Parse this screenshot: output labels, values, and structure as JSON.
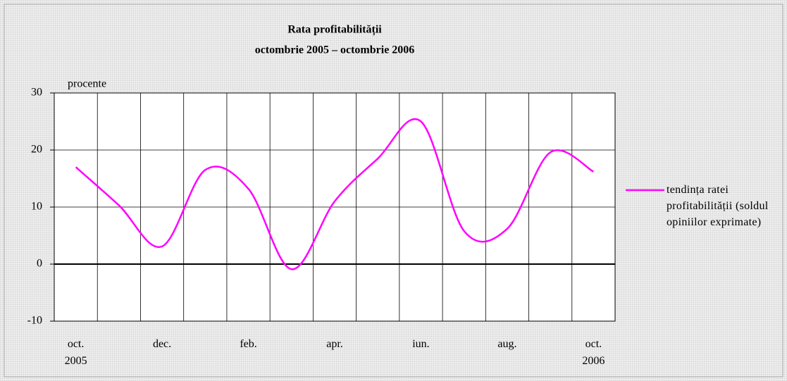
{
  "chart_data": {
    "type": "line",
    "title": "Rata profitabilității",
    "subtitle": "octombrie 2005 – octombrie 2006",
    "y_label": "procente",
    "categories": [
      "oct.\n2005",
      null,
      "dec.",
      null,
      "feb.",
      null,
      "apr.",
      null,
      "iun.",
      null,
      "aug.",
      null,
      "oct.\n2006"
    ],
    "series": [
      {
        "name": "tendința ratei profitabilității (soldul opiniilor exprimate)",
        "color": "#ff00ff",
        "values": [
          17,
          10.3,
          3.1,
          16.5,
          13.2,
          -0.9,
          11,
          18.5,
          25,
          5.8,
          6.2,
          19.6,
          16.2
        ]
      }
    ],
    "ylim": [
      -10,
      30
    ],
    "yticks": [
      -10,
      0,
      10,
      20,
      30
    ],
    "grid": true,
    "legend": "right"
  }
}
